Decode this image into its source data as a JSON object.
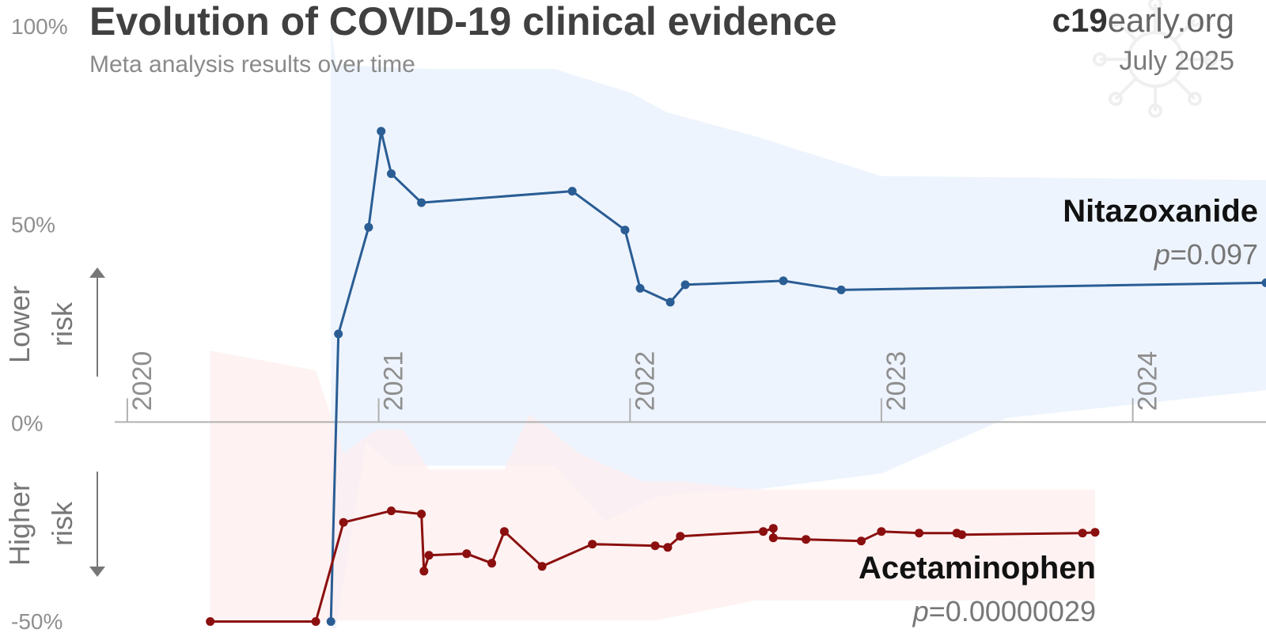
{
  "header": {
    "title": "Evolution of COVID-19 clinical evidence",
    "subtitle": "Meta analysis results over time",
    "brand_bold": "c19",
    "brand_light": "early.org",
    "date": "July 2025"
  },
  "labels": {
    "lower_risk_1": "Lower",
    "lower_risk_2": "risk",
    "higher_risk_1": "Higher",
    "higher_risk_2": "risk"
  },
  "chart_data": {
    "type": "line",
    "title": "Evolution of COVID-19 clinical evidence",
    "subtitle": "Meta analysis results over time",
    "xlabel": "",
    "ylabel": "",
    "xlim": [
      2019.95,
      2024.53
    ],
    "ylim": [
      -50,
      100
    ],
    "y_ticks": [
      {
        "value": 100,
        "label": "100%"
      },
      {
        "value": 50,
        "label": "50%"
      },
      {
        "value": 0,
        "label": "0%"
      },
      {
        "value": -50,
        "label": "-50%"
      }
    ],
    "x_ticks": [
      {
        "value": 2020,
        "label": "2020"
      },
      {
        "value": 2021,
        "label": "2021"
      },
      {
        "value": 2022,
        "label": "2022"
      },
      {
        "value": 2023,
        "label": "2023"
      },
      {
        "value": 2024,
        "label": "2024"
      }
    ],
    "grid": false,
    "colors": {
      "nitazoxanide": "#2a5d94",
      "nitazoxanide_band": "#e8f0fc",
      "acetaminophen": "#8b0f0f",
      "acetaminophen_band": "#fdeeee",
      "axis": "#b0b0b0"
    },
    "series": [
      {
        "name": "Nitazoxanide",
        "p_label": "p",
        "p_value": "=0.097",
        "points": [
          [
            2020.81,
            -50.3
          ],
          [
            2020.84,
            22.2
          ],
          [
            2020.96,
            49.1
          ],
          [
            2021.01,
            73.3
          ],
          [
            2021.05,
            62.6
          ],
          [
            2021.17,
            55.3
          ],
          [
            2021.77,
            58.2
          ],
          [
            2021.98,
            48.4
          ],
          [
            2022.04,
            33.7
          ],
          [
            2022.16,
            30.2
          ],
          [
            2022.22,
            34.6
          ],
          [
            2022.61,
            35.6
          ],
          [
            2022.84,
            33.3
          ],
          [
            2024.53,
            35.1
          ]
        ],
        "band_upper": [
          [
            2020.81,
            100
          ],
          [
            2020.83,
            90
          ],
          [
            2021.2,
            89
          ],
          [
            2021.7,
            89
          ],
          [
            2022.0,
            83
          ],
          [
            2022.15,
            78
          ],
          [
            2022.5,
            72
          ],
          [
            2023.0,
            62
          ],
          [
            2024.53,
            61
          ]
        ],
        "band_lower": [
          [
            2024.53,
            8
          ],
          [
            2023.5,
            1
          ],
          [
            2023.0,
            -13
          ],
          [
            2022.5,
            -17
          ],
          [
            2022.2,
            -18
          ],
          [
            2022.1,
            -19
          ],
          [
            2021.9,
            -25
          ],
          [
            2021.7,
            -11
          ],
          [
            2021.4,
            -11
          ],
          [
            2021.2,
            -11
          ],
          [
            2021.05,
            -11
          ],
          [
            2020.95,
            -5
          ],
          [
            2020.83,
            -52
          ],
          [
            2020.81,
            -52
          ]
        ]
      },
      {
        "name": "Acetaminophen",
        "p_label": "p",
        "p_value": "=0.00000029",
        "points": [
          [
            2020.33,
            -50.3
          ],
          [
            2020.75,
            -50.3
          ],
          [
            2020.86,
            -25.3
          ],
          [
            2021.05,
            -22.4
          ],
          [
            2021.17,
            -23.2
          ],
          [
            2021.18,
            -37.6
          ],
          [
            2021.2,
            -33.6
          ],
          [
            2021.35,
            -33.2
          ],
          [
            2021.45,
            -35.6
          ],
          [
            2021.5,
            -27.6
          ],
          [
            2021.65,
            -36.4
          ],
          [
            2021.85,
            -30.8
          ],
          [
            2022.1,
            -31.2
          ],
          [
            2022.15,
            -31.6
          ],
          [
            2022.2,
            -28.8
          ],
          [
            2022.53,
            -27.6
          ],
          [
            2022.57,
            -26.8
          ],
          [
            2022.57,
            -29.2
          ],
          [
            2022.7,
            -29.6
          ],
          [
            2022.92,
            -30.0
          ],
          [
            2023.0,
            -27.6
          ],
          [
            2023.15,
            -28.0
          ],
          [
            2023.3,
            -28.0
          ],
          [
            2023.32,
            -28.4
          ],
          [
            2023.8,
            -28.0
          ],
          [
            2023.85,
            -27.8
          ]
        ],
        "band_upper": [
          [
            2020.33,
            18
          ],
          [
            2020.75,
            13
          ],
          [
            2020.86,
            -8
          ],
          [
            2020.99,
            -2
          ],
          [
            2021.1,
            -2
          ],
          [
            2021.2,
            -12
          ],
          [
            2021.5,
            -12
          ],
          [
            2021.6,
            2
          ],
          [
            2021.8,
            -8
          ],
          [
            2022.05,
            -15
          ],
          [
            2022.2,
            -15
          ],
          [
            2022.5,
            -17
          ],
          [
            2023.85,
            -17
          ]
        ],
        "band_lower": [
          [
            2023.85,
            -45
          ],
          [
            2023.0,
            -45
          ],
          [
            2022.5,
            -45
          ],
          [
            2022.1,
            -50
          ],
          [
            2021.9,
            -50
          ],
          [
            2021.7,
            -50
          ],
          [
            2021.5,
            -50
          ],
          [
            2021.2,
            -50
          ],
          [
            2020.33,
            -50
          ]
        ]
      }
    ]
  }
}
